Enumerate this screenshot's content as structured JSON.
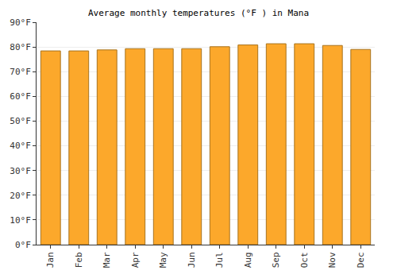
{
  "chart_data": {
    "type": "bar",
    "title": "Average monthly temperatures (°F ) in Mana",
    "categories": [
      "Jan",
      "Feb",
      "Mar",
      "Apr",
      "May",
      "Jun",
      "Jul",
      "Aug",
      "Sep",
      "Oct",
      "Nov",
      "Dec"
    ],
    "values": [
      78.4,
      78.4,
      78.8,
      79.3,
      79.3,
      79.3,
      80.1,
      80.8,
      81.3,
      81.3,
      80.6,
      79.0
    ],
    "color": "#fca82b",
    "ylim": [
      0,
      90
    ],
    "yticks": [
      {
        "value": 0,
        "label": "0°F"
      },
      {
        "value": 10,
        "label": "10°F"
      },
      {
        "value": 20,
        "label": "20°F"
      },
      {
        "value": 30,
        "label": "30°F"
      },
      {
        "value": 40,
        "label": "40°F"
      },
      {
        "value": 50,
        "label": "50°F"
      },
      {
        "value": 60,
        "label": "60°F"
      },
      {
        "value": 70,
        "label": "70°F"
      },
      {
        "value": 80,
        "label": "80°F"
      },
      {
        "value": 90,
        "label": "90°F"
      }
    ],
    "grid": true
  }
}
